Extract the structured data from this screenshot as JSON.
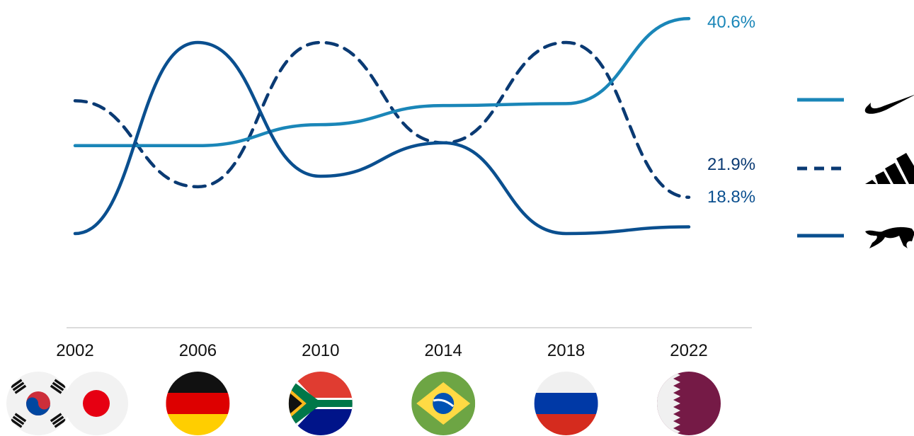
{
  "colors": {
    "nike": "#1a86b8",
    "adidas": "#0a3a73",
    "puma": "#0a4f8f",
    "axis": "#cfcfcf",
    "year_label": "#111111"
  },
  "chart_data": {
    "type": "line",
    "title": "",
    "xlabel": "",
    "ylabel": "",
    "x": [
      "2002",
      "2006",
      "2010",
      "2014",
      "2018",
      "2022"
    ],
    "ylim": [
      16,
      42
    ],
    "grid": false,
    "legend_position": "right",
    "series": [
      {
        "key": "nike",
        "icon": "nike-swoosh-icon",
        "style": "solid",
        "values": [
          27.3,
          27.3,
          29.5,
          31.5,
          31.7,
          40.6
        ],
        "end_label": "40.6%"
      },
      {
        "key": "adidas",
        "icon": "adidas-logo-icon",
        "style": "dashed",
        "values": [
          32.0,
          23.0,
          38.1,
          27.6,
          38.1,
          21.9
        ],
        "end_label": "21.9%"
      },
      {
        "key": "puma",
        "icon": "puma-cat-icon",
        "style": "solid",
        "values": [
          18.1,
          38.1,
          24.1,
          27.6,
          18.1,
          18.8
        ],
        "end_label": "18.8%"
      }
    ],
    "host_flags": [
      {
        "year": "2002",
        "flags": [
          "south-korea-flag-icon",
          "japan-flag-icon"
        ]
      },
      {
        "year": "2006",
        "flags": [
          "germany-flag-icon"
        ]
      },
      {
        "year": "2010",
        "flags": [
          "south-africa-flag-icon"
        ]
      },
      {
        "year": "2014",
        "flags": [
          "brazil-flag-icon"
        ]
      },
      {
        "year": "2018",
        "flags": [
          "russia-flag-icon"
        ]
      },
      {
        "year": "2022",
        "flags": [
          "qatar-flag-icon"
        ]
      }
    ]
  }
}
